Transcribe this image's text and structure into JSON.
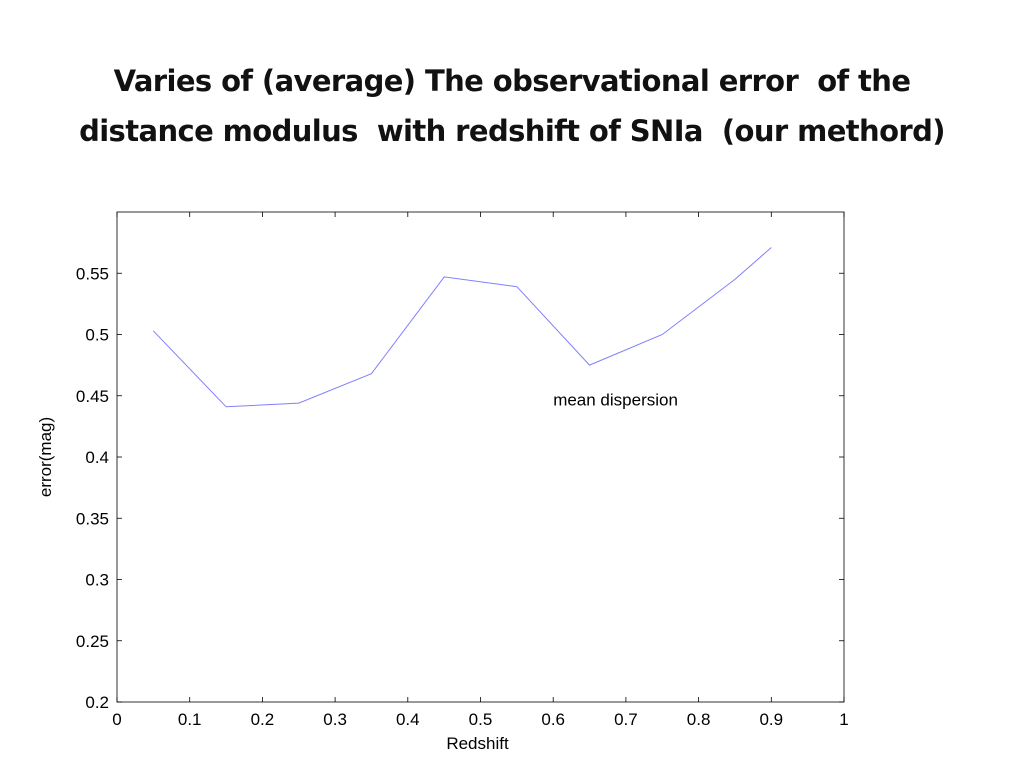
{
  "slide": {
    "title_lines": [
      "Varies of (average) The observational error  of the",
      "distance modulus  with redshift of SNIa  (our methord)"
    ]
  },
  "chart_data": {
    "type": "line",
    "title": "",
    "xlabel": "Redshift",
    "ylabel": "error(mag)",
    "xlim": [
      0,
      1
    ],
    "ylim": [
      0.2,
      0.6
    ],
    "xticks": [
      0,
      0.1,
      0.2,
      0.3,
      0.4,
      0.5,
      0.6,
      0.7,
      0.8,
      0.9,
      1
    ],
    "xtick_labels": [
      "0",
      "0.1",
      "0.2",
      "0.3",
      "0.4",
      "0.5",
      "0.6",
      "0.7",
      "0.8",
      "0.9",
      "1"
    ],
    "yticks": [
      0.2,
      0.25,
      0.3,
      0.35,
      0.4,
      0.45,
      0.5,
      0.55
    ],
    "ytick_labels": [
      "0.2",
      "0.25",
      "0.3",
      "0.35",
      "0.4",
      "0.45",
      "0.5",
      "0.55"
    ],
    "grid": false,
    "series": [
      {
        "color": "#8080ff",
        "x": [
          0.05,
          0.15,
          0.25,
          0.35,
          0.45,
          0.55,
          0.65,
          0.75,
          0.85,
          0.9
        ],
        "y": [
          0.503,
          0.441,
          0.444,
          0.468,
          0.547,
          0.539,
          0.475,
          0.5,
          0.545,
          0.571
        ]
      }
    ],
    "annotations": [
      {
        "text": "mean dispersion",
        "x": 0.6,
        "y": 0.447
      }
    ]
  }
}
